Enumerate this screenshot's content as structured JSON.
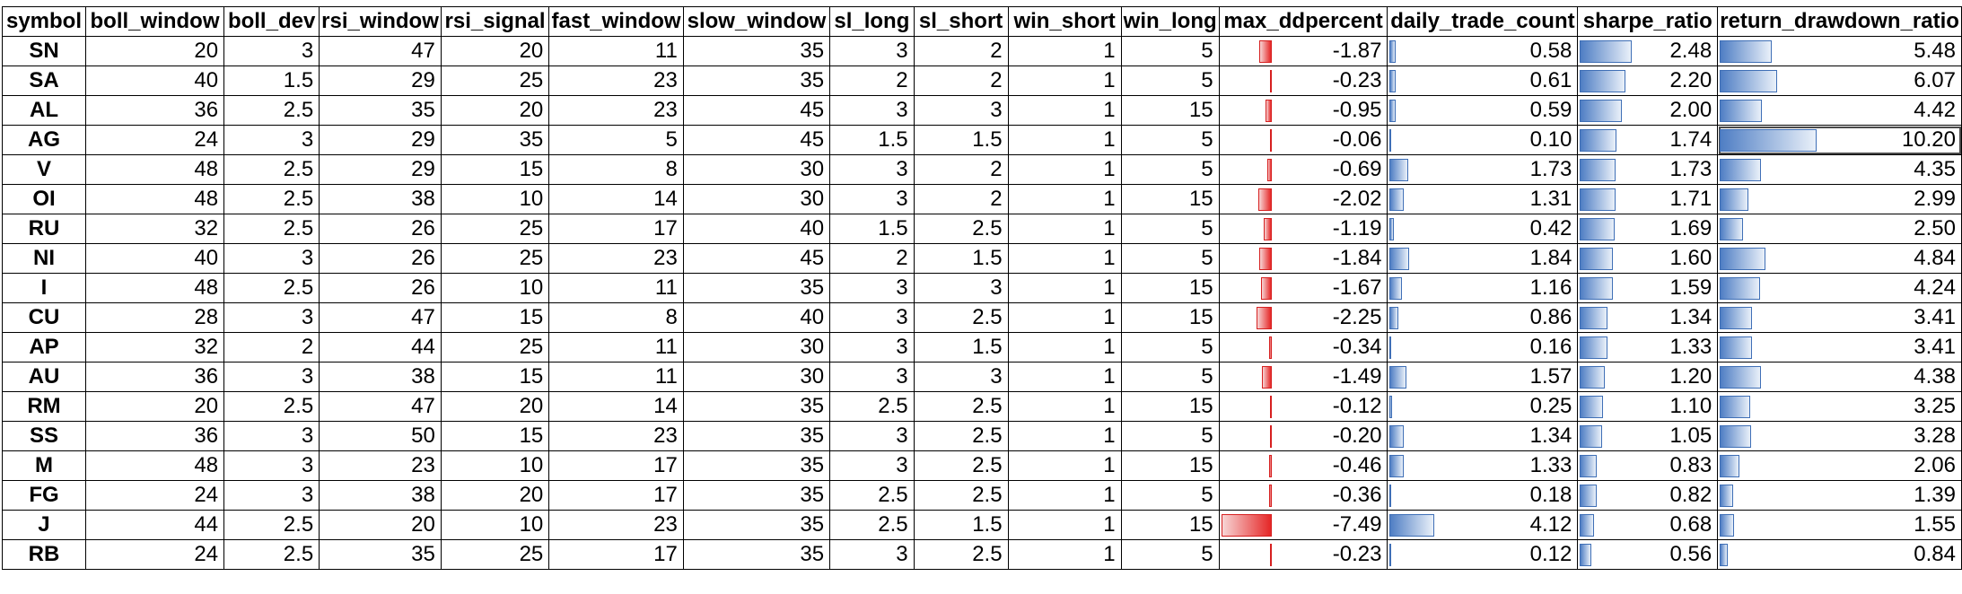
{
  "columns": [
    "symbol",
    "boll_window",
    "boll_dev",
    "rsi_window",
    "rsi_signal",
    "fast_window",
    "slow_window",
    "sl_long",
    "sl_short",
    "win_short",
    "win_long",
    "max_ddpercent",
    "daily_trade_count",
    "sharpe_ratio",
    "return_drawdown_ratio"
  ],
  "colors": {
    "neg_bar": "#e52727",
    "pos_bar": "#4f7ec4",
    "border": "#000000"
  },
  "rows": [
    [
      "SN",
      "20",
      "3",
      "47",
      "20",
      "11",
      "35",
      "3",
      "2",
      "1",
      "5",
      "-1.87",
      "0.58",
      "2.48",
      "5.48"
    ],
    [
      "SA",
      "40",
      "1.5",
      "29",
      "25",
      "23",
      "35",
      "2",
      "2",
      "1",
      "5",
      "-0.23",
      "0.61",
      "2.20",
      "6.07"
    ],
    [
      "AL",
      "36",
      "2.5",
      "35",
      "20",
      "23",
      "45",
      "3",
      "3",
      "1",
      "15",
      "-0.95",
      "0.59",
      "2.00",
      "4.42"
    ],
    [
      "AG",
      "24",
      "3",
      "29",
      "35",
      "5",
      "45",
      "1.5",
      "1.5",
      "1",
      "5",
      "-0.06",
      "0.10",
      "1.74",
      "10.20"
    ],
    [
      "V",
      "48",
      "2.5",
      "29",
      "15",
      "8",
      "30",
      "3",
      "2",
      "1",
      "5",
      "-0.69",
      "1.73",
      "1.73",
      "4.35"
    ],
    [
      "OI",
      "48",
      "2.5",
      "38",
      "10",
      "14",
      "30",
      "3",
      "2",
      "1",
      "15",
      "-2.02",
      "1.31",
      "1.71",
      "2.99"
    ],
    [
      "RU",
      "32",
      "2.5",
      "26",
      "25",
      "17",
      "40",
      "1.5",
      "2.5",
      "1",
      "5",
      "-1.19",
      "0.42",
      "1.69",
      "2.50"
    ],
    [
      "NI",
      "40",
      "3",
      "26",
      "25",
      "23",
      "45",
      "2",
      "1.5",
      "1",
      "5",
      "-1.84",
      "1.84",
      "1.60",
      "4.84"
    ],
    [
      "I",
      "48",
      "2.5",
      "26",
      "10",
      "11",
      "35",
      "3",
      "3",
      "1",
      "15",
      "-1.67",
      "1.16",
      "1.59",
      "4.24"
    ],
    [
      "CU",
      "28",
      "3",
      "47",
      "15",
      "8",
      "40",
      "3",
      "2.5",
      "1",
      "15",
      "-2.25",
      "0.86",
      "1.34",
      "3.41"
    ],
    [
      "AP",
      "32",
      "2",
      "44",
      "25",
      "11",
      "30",
      "3",
      "1.5",
      "1",
      "5",
      "-0.34",
      "0.16",
      "1.33",
      "3.41"
    ],
    [
      "AU",
      "36",
      "3",
      "38",
      "15",
      "11",
      "30",
      "3",
      "3",
      "1",
      "5",
      "-1.49",
      "1.57",
      "1.20",
      "4.38"
    ],
    [
      "RM",
      "20",
      "2.5",
      "47",
      "20",
      "14",
      "35",
      "2.5",
      "2.5",
      "1",
      "15",
      "-0.12",
      "0.25",
      "1.10",
      "3.25"
    ],
    [
      "SS",
      "36",
      "3",
      "50",
      "15",
      "23",
      "35",
      "3",
      "2.5",
      "1",
      "5",
      "-0.20",
      "1.34",
      "1.05",
      "3.28"
    ],
    [
      "M",
      "48",
      "3",
      "23",
      "10",
      "17",
      "35",
      "3",
      "2.5",
      "1",
      "15",
      "-0.46",
      "1.33",
      "0.83",
      "2.06"
    ],
    [
      "FG",
      "24",
      "3",
      "38",
      "20",
      "17",
      "35",
      "2.5",
      "2.5",
      "1",
      "5",
      "-0.36",
      "0.18",
      "0.82",
      "1.39"
    ],
    [
      "J",
      "44",
      "2.5",
      "20",
      "10",
      "23",
      "35",
      "2.5",
      "1.5",
      "1",
      "15",
      "-7.49",
      "4.12",
      "0.68",
      "1.55"
    ],
    [
      "RB",
      "24",
      "2.5",
      "35",
      "25",
      "17",
      "35",
      "3",
      "2.5",
      "1",
      "5",
      "-0.23",
      "0.12",
      "0.56",
      "0.84"
    ]
  ]
}
